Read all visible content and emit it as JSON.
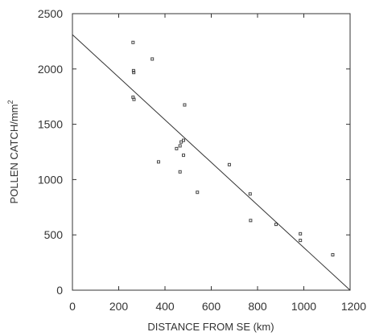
{
  "chart_data": {
    "type": "scatter",
    "title": "",
    "xlabel": "DISTANCE FROM SE (km)",
    "ylabel": "POLLEN CATCH/mm",
    "ylabel_superscript": "2",
    "xlim": [
      0,
      1200
    ],
    "ylim": [
      0,
      2500
    ],
    "xticks": [
      0,
      200,
      400,
      600,
      800,
      1000,
      1200
    ],
    "yticks": [
      0,
      500,
      1000,
      1500,
      2000,
      2500
    ],
    "grid": false,
    "legend": "none",
    "series": [
      {
        "points": [
          {
            "x": 262,
            "y": 2240
          },
          {
            "x": 264,
            "y": 1985
          },
          {
            "x": 265,
            "y": 1968
          },
          {
            "x": 262,
            "y": 1745
          },
          {
            "x": 266,
            "y": 1725
          },
          {
            "x": 345,
            "y": 2090
          },
          {
            "x": 372,
            "y": 1160
          },
          {
            "x": 450,
            "y": 1280
          },
          {
            "x": 465,
            "y": 1305
          },
          {
            "x": 470,
            "y": 1340
          },
          {
            "x": 480,
            "y": 1355
          },
          {
            "x": 485,
            "y": 1675
          },
          {
            "x": 480,
            "y": 1220
          },
          {
            "x": 465,
            "y": 1070
          },
          {
            "x": 540,
            "y": 885
          },
          {
            "x": 678,
            "y": 1135
          },
          {
            "x": 768,
            "y": 870
          },
          {
            "x": 770,
            "y": 630
          },
          {
            "x": 880,
            "y": 595
          },
          {
            "x": 985,
            "y": 510
          },
          {
            "x": 985,
            "y": 450
          },
          {
            "x": 1125,
            "y": 320
          }
        ]
      }
    ],
    "fit_line": {
      "x": [
        0,
        1200
      ],
      "y": [
        2310,
        0
      ]
    }
  }
}
